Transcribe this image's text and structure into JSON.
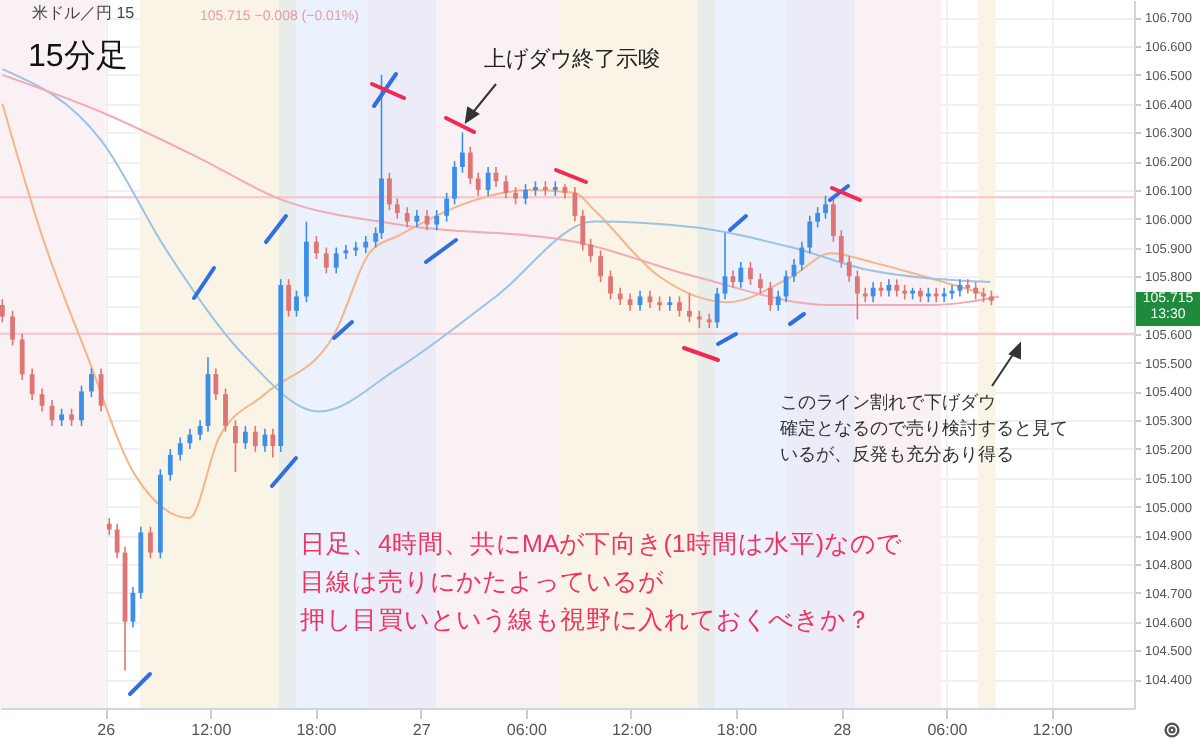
{
  "chart_data": {
    "type": "candlestick",
    "title": "15分足",
    "subtitle": "米ドル／円  15",
    "annotations": [
      "上げダウ終了示唆",
      "このライン割れで下げダウ確定となるので売り検討すると見ているが、反発も充分あり得る",
      "日足、4時間、共にMAが下向き(1時間は水平)なので目線は売りにかたよっているが押し目買いという線も視野に入れておくべきか？",
      "105.715",
      "13:30",
      "105.715  −0.008 (−0.01%)"
    ],
    "x": [
      "--08-26T00:08",
      "--08-26T00:43",
      "--08-26T01:16",
      "--08-26T01:50",
      "--08-26T02:24",
      "--08-26T02:58",
      "--08-26T03:31",
      "--08-26T04:05",
      "--08-26T04:39",
      "--08-26T05:13",
      "--08-26T05:46",
      "--08-26T06:14",
      "--08-26T06:41",
      "--08-26T07:08",
      "--08-26T07:35",
      "--08-26T08:02",
      "--08-26T08:35",
      "--08-26T09:09",
      "--08-26T09:43",
      "--08-26T10:17",
      "--08-26T10:50",
      "--08-26T11:25",
      "--08-26T11:52",
      "--08-26T12:19",
      "--08-26T12:52",
      "--08-26T13:26",
      "--08-26T14:00",
      "--08-26T14:34",
      "--08-26T15:07",
      "--08-26T15:34",
      "--08-26T16:01",
      "--08-26T16:28",
      "--08-26T16:55",
      "--08-26T17:29",
      "--08-26T18:03",
      "--08-26T18:37",
      "--08-26T19:11",
      "--08-26T19:44",
      "--08-26T20:18",
      "--08-26T20:52",
      "--08-26T21:26",
      "--08-26T21:46",
      "--08-26T22:13",
      "--08-26T22:40",
      "--08-26T23:14",
      "--08-26T23:47",
      "--08-27T00:22",
      "--08-27T00:55",
      "--08-27T01:29",
      "--08-27T01:56",
      "--08-27T02:23",
      "--08-27T02:50",
      "--08-27T03:17",
      "--08-27T03:51",
      "--08-27T04:18",
      "--08-27T04:52",
      "--08-27T05:25",
      "--08-27T05:59",
      "--08-27T06:33",
      "--08-27T07:07",
      "--08-27T07:41",
      "--08-27T08:14",
      "--08-27T08:48",
      "--08-27T09:15",
      "--08-27T09:42",
      "--08-27T10:16",
      "--08-27T10:50",
      "--08-27T11:23",
      "--08-27T11:57",
      "--08-27T12:31",
      "--08-27T13:05",
      "--08-27T13:38",
      "--08-27T14:13",
      "--08-27T14:46",
      "--08-27T15:20",
      "--08-27T15:54",
      "--08-27T16:28",
      "--08-27T16:55",
      "--08-27T17:22",
      "--08-27T17:49",
      "--08-27T18:16",
      "--08-27T18:49",
      "--08-27T19:23",
      "--08-27T19:57",
      "--08-27T20:24",
      "--08-27T20:51",
      "--08-27T21:18",
      "--08-27T21:45",
      "--08-27T22:12",
      "--08-27T22:39",
      "--08-27T23:06",
      "--08-27T23:33",
      "--08-28T00:00",
      "--08-28T00:27",
      "--08-28T00:55",
      "--08-28T01:22",
      "--08-28T01:49",
      "--08-28T02:16",
      "--08-28T02:43",
      "--08-28T03:10",
      "--08-28T03:37",
      "--08-28T04:04",
      "--08-28T04:31",
      "--08-28T04:58",
      "--08-28T05:25",
      "--08-28T05:52",
      "--08-28T06:19",
      "--08-28T06:46",
      "--08-28T07:13",
      "--08-28T07:40",
      "--08-28T08:07",
      "--08-28T08:34"
    ],
    "ohlc": [
      [
        105.7,
        105.72,
        105.64,
        105.66
      ],
      [
        105.66,
        105.68,
        105.56,
        105.58
      ],
      [
        105.58,
        105.6,
        105.44,
        105.46
      ],
      [
        105.46,
        105.48,
        105.37,
        105.39
      ],
      [
        105.39,
        105.41,
        105.33,
        105.35
      ],
      [
        105.35,
        105.37,
        105.28,
        105.3
      ],
      [
        105.3,
        105.34,
        105.28,
        105.32
      ],
      [
        105.32,
        105.34,
        105.28,
        105.3
      ],
      [
        105.3,
        105.42,
        105.28,
        105.4
      ],
      [
        105.4,
        105.48,
        105.38,
        105.46
      ],
      [
        105.46,
        105.48,
        105.33,
        105.35
      ],
      [
        104.94,
        104.96,
        104.9,
        104.92
      ],
      [
        104.92,
        104.94,
        104.82,
        104.84
      ],
      [
        104.84,
        104.86,
        104.43,
        104.6
      ],
      [
        104.6,
        104.72,
        104.58,
        104.7
      ],
      [
        104.7,
        104.93,
        104.68,
        104.91
      ],
      [
        104.91,
        104.93,
        104.82,
        104.84
      ],
      [
        104.84,
        105.13,
        104.82,
        105.11
      ],
      [
        105.11,
        105.2,
        105.09,
        105.18
      ],
      [
        105.18,
        105.24,
        105.16,
        105.22
      ],
      [
        105.22,
        105.27,
        105.2,
        105.25
      ],
      [
        105.25,
        105.3,
        105.23,
        105.28
      ],
      [
        105.28,
        105.52,
        105.26,
        105.46
      ],
      [
        105.46,
        105.48,
        105.37,
        105.39
      ],
      [
        105.39,
        105.41,
        105.26,
        105.28
      ],
      [
        105.28,
        105.3,
        105.12,
        105.22
      ],
      [
        105.22,
        105.28,
        105.2,
        105.26
      ],
      [
        105.26,
        105.28,
        105.19,
        105.21
      ],
      [
        105.21,
        105.27,
        105.19,
        105.25
      ],
      [
        105.25,
        105.27,
        105.17,
        105.21
      ],
      [
        105.21,
        105.79,
        105.19,
        105.77
      ],
      [
        105.77,
        105.79,
        105.66,
        105.68
      ],
      [
        105.68,
        105.75,
        105.66,
        105.73
      ],
      [
        105.73,
        105.99,
        105.71,
        105.92
      ],
      [
        105.92,
        105.94,
        105.86,
        105.88
      ],
      [
        105.88,
        105.9,
        105.81,
        105.83
      ],
      [
        105.83,
        105.9,
        105.81,
        105.88
      ],
      [
        105.88,
        105.91,
        105.86,
        105.89
      ],
      [
        105.89,
        105.92,
        105.87,
        105.9
      ],
      [
        105.9,
        105.94,
        105.88,
        105.92
      ],
      [
        105.92,
        105.97,
        105.9,
        105.95
      ],
      [
        105.95,
        106.5,
        105.93,
        106.14
      ],
      [
        106.14,
        106.16,
        106.03,
        106.05
      ],
      [
        106.05,
        106.07,
        106.0,
        106.02
      ],
      [
        106.02,
        106.04,
        105.97,
        105.99
      ],
      [
        105.99,
        106.03,
        105.97,
        106.01
      ],
      [
        106.01,
        106.03,
        105.96,
        105.98
      ],
      [
        105.98,
        106.03,
        105.96,
        106.01
      ],
      [
        106.01,
        106.09,
        105.99,
        106.07
      ],
      [
        106.07,
        106.2,
        106.05,
        106.18
      ],
      [
        106.18,
        106.3,
        106.16,
        106.23
      ],
      [
        106.23,
        106.25,
        106.12,
        106.14
      ],
      [
        106.14,
        106.16,
        106.08,
        106.1
      ],
      [
        106.1,
        106.18,
        106.08,
        106.16
      ],
      [
        106.16,
        106.18,
        106.11,
        106.13
      ],
      [
        106.13,
        106.15,
        106.07,
        106.09
      ],
      [
        106.09,
        106.11,
        106.05,
        106.07
      ],
      [
        106.07,
        106.12,
        106.05,
        106.1
      ],
      [
        106.1,
        106.13,
        106.08,
        106.11
      ],
      [
        106.11,
        106.13,
        106.08,
        106.1
      ],
      [
        106.1,
        106.13,
        106.08,
        106.11
      ],
      [
        106.11,
        106.12,
        106.07,
        106.09
      ],
      [
        106.09,
        106.11,
        105.99,
        106.01
      ],
      [
        106.01,
        106.03,
        105.89,
        105.91
      ],
      [
        105.91,
        105.93,
        105.85,
        105.87
      ],
      [
        105.87,
        105.89,
        105.78,
        105.8
      ],
      [
        105.8,
        105.82,
        105.72,
        105.74
      ],
      [
        105.74,
        105.76,
        105.7,
        105.72
      ],
      [
        105.72,
        105.74,
        105.68,
        105.7
      ],
      [
        105.7,
        105.75,
        105.68,
        105.73
      ],
      [
        105.73,
        105.75,
        105.69,
        105.71
      ],
      [
        105.71,
        105.73,
        105.68,
        105.7
      ],
      [
        105.7,
        105.73,
        105.68,
        105.71
      ],
      [
        105.71,
        105.73,
        105.66,
        105.68
      ],
      [
        105.68,
        105.74,
        105.64,
        105.66
      ],
      [
        105.66,
        105.68,
        105.62,
        105.65
      ],
      [
        105.65,
        105.67,
        105.62,
        105.64
      ],
      [
        105.64,
        105.76,
        105.62,
        105.74
      ],
      [
        105.74,
        105.95,
        105.72,
        105.8
      ],
      [
        105.8,
        105.82,
        105.76,
        105.78
      ],
      [
        105.78,
        105.85,
        105.76,
        105.83
      ],
      [
        105.83,
        105.85,
        105.77,
        105.79
      ],
      [
        105.79,
        105.81,
        105.74,
        105.76
      ],
      [
        105.76,
        105.78,
        105.68,
        105.7
      ],
      [
        105.7,
        105.75,
        105.68,
        105.73
      ],
      [
        105.73,
        105.82,
        105.71,
        105.8
      ],
      [
        105.8,
        105.86,
        105.78,
        105.84
      ],
      [
        105.84,
        105.92,
        105.82,
        105.9
      ],
      [
        105.9,
        106.01,
        105.88,
        105.99
      ],
      [
        105.99,
        106.04,
        105.97,
        106.02
      ],
      [
        106.02,
        106.08,
        106.0,
        106.05
      ],
      [
        106.05,
        106.07,
        105.92,
        105.94
      ],
      [
        105.94,
        105.96,
        105.83,
        105.85
      ],
      [
        105.85,
        105.87,
        105.78,
        105.8
      ],
      [
        105.8,
        105.82,
        105.65,
        105.74
      ],
      [
        105.74,
        105.76,
        105.71,
        105.73
      ],
      [
        105.73,
        105.78,
        105.71,
        105.76
      ],
      [
        105.76,
        105.78,
        105.73,
        105.75
      ],
      [
        105.75,
        105.79,
        105.73,
        105.77
      ],
      [
        105.77,
        105.79,
        105.73,
        105.75
      ],
      [
        105.75,
        105.77,
        105.72,
        105.74
      ],
      [
        105.74,
        105.76,
        105.72,
        105.75
      ],
      [
        105.75,
        105.76,
        105.71,
        105.73
      ],
      [
        105.73,
        105.76,
        105.71,
        105.74
      ],
      [
        105.74,
        105.76,
        105.71,
        105.73
      ],
      [
        105.73,
        105.76,
        105.71,
        105.74
      ],
      [
        105.74,
        105.77,
        105.72,
        105.75
      ],
      [
        105.75,
        105.79,
        105.73,
        105.77
      ],
      [
        105.77,
        105.79,
        105.74,
        105.76
      ],
      [
        105.76,
        105.78,
        105.72,
        105.74
      ],
      [
        105.74,
        105.76,
        105.71,
        105.73
      ],
      [
        105.73,
        105.75,
        105.7,
        105.715
      ]
    ],
    "colors": [
      "#e07575",
      "#e07575",
      "#e07575",
      "#e07575",
      "#e07575",
      "#e07575",
      "#3d8ee6",
      "#e07575",
      "#3d8ee6",
      "#3d8ee6",
      "#e07575",
      "#e07575",
      "#e07575",
      "#e07575",
      "#3d8ee6",
      "#3d8ee6",
      "#e07575",
      "#3d8ee6",
      "#3d8ee6",
      "#3d8ee6",
      "#3d8ee6",
      "#3d8ee6",
      "#3d8ee6",
      "#e07575",
      "#e07575",
      "#e07575",
      "#3d8ee6",
      "#e07575",
      "#3d8ee6",
      "#e07575",
      "#3d8ee6",
      "#e07575",
      "#3d8ee6",
      "#3d8ee6",
      "#e07575",
      "#e07575",
      "#3d8ee6",
      "#3d8ee6",
      "#3d8ee6",
      "#3d8ee6",
      "#3d8ee6",
      "#3d8ee6",
      "#e07575",
      "#e07575",
      "#e07575",
      "#3d8ee6",
      "#e07575",
      "#3d8ee6",
      "#3d8ee6",
      "#3d8ee6",
      "#3d8ee6",
      "#e07575",
      "#e07575",
      "#3d8ee6",
      "#e07575",
      "#e07575",
      "#e07575",
      "#3d8ee6",
      "#3d8ee6",
      "#e07575",
      "#3d8ee6",
      "#e07575",
      "#e07575",
      "#e07575",
      "#e07575",
      "#e07575",
      "#e07575",
      "#e07575",
      "#e07575",
      "#3d8ee6",
      "#e07575",
      "#e07575",
      "#3d8ee6",
      "#e07575",
      "#e07575",
      "#e07575",
      "#e07575",
      "#3d8ee6",
      "#3d8ee6",
      "#e07575",
      "#3d8ee6",
      "#e07575",
      "#e07575",
      "#e07575",
      "#3d8ee6",
      "#3d8ee6",
      "#3d8ee6",
      "#3d8ee6",
      "#3d8ee6",
      "#3d8ee6",
      "#3d8ee6",
      "#e07575",
      "#e07575",
      "#e07575",
      "#e07575",
      "#e07575",
      "#3d8ee6",
      "#e07575",
      "#3d8ee6",
      "#e07575",
      "#e07575",
      "#3d8ee6",
      "#e07575",
      "#3d8ee6",
      "#e07575",
      "#3d8ee6",
      "#3d8ee6",
      "#3d8ee6",
      "#e07575",
      "#e07575",
      "#e07575",
      "#e07575"
    ],
    "series": [
      {
        "type": "line",
        "color": "#f5b58a",
        "x": [
          "--08-26T00:08",
          "--08-26T02:24",
          "--08-26T05:00",
          "--08-26T07:42",
          "--08-26T10:48",
          "--08-26T12:30",
          "--08-26T15:06",
          "--08-26T19:00",
          "--08-26T21:12",
          "--08-26T22:42",
          "--08-27T02:24",
          "--08-27T06:12",
          "--08-27T08:48",
          "--08-27T09:54",
          "--08-27T13:36",
          "--08-27T17:30",
          "--08-27T21:12",
          "--08-27T23:24",
          "--08-28T01:42",
          "--08-28T04:42",
          "--08-28T08:06"
        ],
        "values": [
          106.4,
          105.94,
          105.52,
          105.11,
          104.96,
          105.24,
          105.39,
          105.59,
          105.89,
          105.94,
          106.05,
          106.1,
          106.09,
          106.03,
          105.8,
          105.71,
          105.8,
          105.88,
          105.85,
          105.8,
          105.74
        ]
      },
      {
        "type": "line",
        "color": "#9cc3e6",
        "x": [
          "--08-26T00:08",
          "--08-26T05:48",
          "--08-26T09:30",
          "--08-26T14:00",
          "--08-26T18:12",
          "--08-26T22:42",
          "--08-27T04:18",
          "--08-27T09:54",
          "--08-27T15:36",
          "--08-27T21:12",
          "--08-28T01:42",
          "--08-28T08:30"
        ],
        "values": [
          106.52,
          106.27,
          105.89,
          105.52,
          105.33,
          105.48,
          105.73,
          105.99,
          105.97,
          105.9,
          105.82,
          105.78
        ]
      },
      {
        "type": "line",
        "color": "#f2a9b8",
        "x": [
          "--08-26T00:08",
          "--08-26T05:48",
          "--08-26T11:24",
          "--08-26T15:54",
          "--08-26T22:42",
          "--08-27T08:48",
          "--08-27T15:36",
          "--08-27T23:24",
          "--08-28T05:06",
          "--08-28T09:00"
        ],
        "values": [
          106.5,
          106.37,
          106.21,
          106.07,
          105.98,
          105.92,
          105.8,
          105.7,
          105.7,
          105.73
        ]
      }
    ],
    "ref_lines": [
      {
        "axis": "y",
        "value": 106.075,
        "color": "#f7c3cd"
      },
      {
        "axis": "y",
        "value": 105.6,
        "color": "#f7c3cd"
      }
    ],
    "bands": [
      {
        "axis": "x",
        "from": "--08-26T00:00",
        "to": "--08-26T06:00",
        "color": "#f9f1f3"
      },
      {
        "axis": "x",
        "from": "--08-26T08:00",
        "to": "--08-26T15:54",
        "color": "#faf4e6"
      },
      {
        "axis": "x",
        "from": "--08-26T15:54",
        "to": "--08-26T16:54",
        "color": "#e8ecea"
      },
      {
        "axis": "x",
        "from": "--08-26T16:54",
        "to": "--08-26T20:54",
        "color": "#ebf2fd"
      },
      {
        "axis": "x",
        "from": "--08-26T20:54",
        "to": "--08-27T00:54",
        "color": "#ececf8"
      },
      {
        "axis": "x",
        "from": "--08-27T00:54",
        "to": "--08-27T07:54",
        "color": "#f9f1f3"
      },
      {
        "axis": "x",
        "from": "--08-27T07:54",
        "to": "--08-27T15:48",
        "color": "#faf4e6"
      },
      {
        "axis": "x",
        "from": "--08-27T15:48",
        "to": "--08-27T16:48",
        "color": "#e8ecea"
      },
      {
        "axis": "x",
        "from": "--08-27T16:48",
        "to": "--08-27T20:54",
        "color": "#ebf2fd"
      },
      {
        "axis": "x",
        "from": "--08-27T20:54",
        "to": "--08-28T00:48",
        "color": "#ececf8"
      },
      {
        "axis": "x",
        "from": "--08-28T00:48",
        "to": "--08-28T05:42",
        "color": "#f9f1f3"
      },
      {
        "axis": "x",
        "from": "--08-28T07:48",
        "to": "--08-28T08:48",
        "color": "#faf4e6"
      }
    ],
    "xlim": [
      "--08-26T00:00",
      "--08-28T16:42"
    ],
    "ylim": [
      104.3,
      106.76
    ],
    "xticks": [
      {
        "value": "--08-26T06:00",
        "label": "26"
      },
      {
        "value": "--08-26T12:00",
        "label": "12:00"
      },
      {
        "value": "--08-26T18:00",
        "label": "18:00"
      },
      {
        "value": "--08-27T00:00",
        "label": "27"
      },
      {
        "value": "--08-27T06:00",
        "label": "06:00"
      },
      {
        "value": "--08-27T12:00",
        "label": "12:00"
      },
      {
        "value": "--08-27T18:00",
        "label": "18:00"
      },
      {
        "value": "--08-28T00:00",
        "label": "28"
      },
      {
        "value": "--08-28T06:00",
        "label": "06:00"
      },
      {
        "value": "--08-28T12:00",
        "label": "12:00"
      }
    ],
    "yticks": [
      {
        "value": 104.4,
        "label": "104.400"
      },
      {
        "value": 104.5,
        "label": "104.500"
      },
      {
        "value": 104.6,
        "label": "104.600"
      },
      {
        "value": 104.7,
        "label": "104.700"
      },
      {
        "value": 104.8,
        "label": "104.800"
      },
      {
        "value": 104.9,
        "label": "104.900"
      },
      {
        "value": 105.0,
        "label": "105.000"
      },
      {
        "value": 105.1,
        "label": "105.100"
      },
      {
        "value": 105.2,
        "label": "105.200"
      },
      {
        "value": 105.3,
        "label": "105.300"
      },
      {
        "value": 105.4,
        "label": "105.400"
      },
      {
        "value": 105.5,
        "label": "105.500"
      },
      {
        "value": 105.6,
        "label": "105.600"
      },
      {
        "value": 105.7,
        "label": null
      },
      {
        "value": 105.8,
        "label": "105.800"
      },
      {
        "value": 105.9,
        "label": "105.900"
      },
      {
        "value": 106.0,
        "label": "106.000"
      },
      {
        "value": 106.1,
        "label": "106.100"
      },
      {
        "value": 106.2,
        "label": "106.200"
      },
      {
        "value": 106.3,
        "label": "106.300"
      },
      {
        "value": 106.4,
        "label": "106.400"
      },
      {
        "value": 106.5,
        "label": "106.500"
      },
      {
        "value": 106.6,
        "label": "106.600"
      },
      {
        "value": 106.7,
        "label": "106.700"
      }
    ],
    "grid": true
  }
}
